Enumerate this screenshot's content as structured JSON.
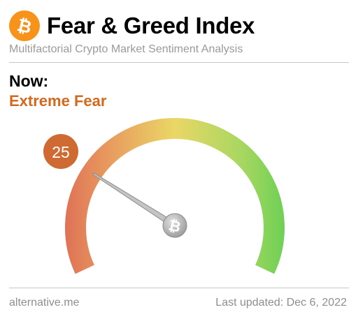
{
  "header": {
    "logo_icon": "bitcoin-icon",
    "title": "Fear & Greed Index",
    "subtitle": "Multifactorial Crypto Market Sentiment Analysis"
  },
  "now": {
    "label": "Now:",
    "classification": "Extreme Fear",
    "classification_color": "#d2691e",
    "value": 25,
    "badge_color": "#cf6a33"
  },
  "gauge": {
    "min": 0,
    "max": 100,
    "value": 25,
    "center_icon": "bitcoin-icon",
    "colors": [
      "#dd6a55",
      "#e89a5e",
      "#ead766",
      "#a8d761",
      "#62cf52"
    ]
  },
  "footer": {
    "source": "alternative.me",
    "updated": "Last updated: Dec 6, 2022"
  }
}
